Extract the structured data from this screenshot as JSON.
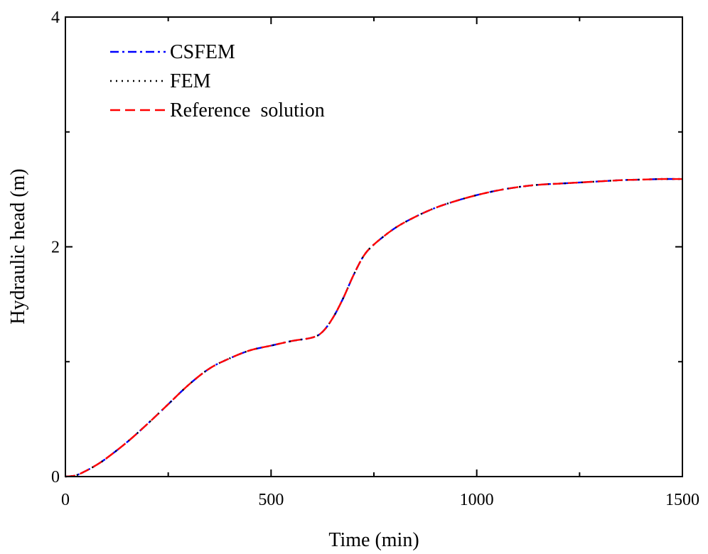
{
  "chart_data": {
    "type": "line",
    "xlabel": "Time (min)",
    "ylabel": "Hydraulic head (m)",
    "xlim": [
      0,
      1500
    ],
    "ylim": [
      0,
      4
    ],
    "x_major_ticks": [
      0,
      500,
      1000,
      1500
    ],
    "x_minor_ticks": [
      250,
      750,
      1250
    ],
    "y_major_ticks": [
      0,
      2,
      4
    ],
    "y_minor_ticks": [
      1,
      3
    ],
    "tick_direction": "inward",
    "grid": false,
    "legend_position": "top-left",
    "series": [
      {
        "name": "CSFEM",
        "color": "#0000ff",
        "line_style": "dash-dot",
        "x": [
          0,
          25,
          50,
          75,
          100,
          150,
          200,
          250,
          300,
          350,
          400,
          450,
          500,
          550,
          600,
          625,
          650,
          675,
          700,
          725,
          750,
          800,
          850,
          900,
          950,
          1000,
          1050,
          1100,
          1150,
          1200,
          1250,
          1300,
          1350,
          1400,
          1450,
          1500
        ],
        "y": [
          0,
          0.01,
          0.05,
          0.1,
          0.16,
          0.3,
          0.46,
          0.63,
          0.8,
          0.94,
          1.03,
          1.1,
          1.14,
          1.18,
          1.21,
          1.26,
          1.38,
          1.55,
          1.75,
          1.92,
          2.02,
          2.16,
          2.26,
          2.34,
          2.4,
          2.45,
          2.49,
          2.52,
          2.54,
          2.55,
          2.56,
          2.57,
          2.58,
          2.585,
          2.59,
          2.59
        ]
      },
      {
        "name": "FEM",
        "color": "#000000",
        "line_style": "dotted",
        "x": [
          0,
          25,
          50,
          75,
          100,
          150,
          200,
          250,
          300,
          350,
          400,
          450,
          500,
          550,
          600,
          625,
          650,
          675,
          700,
          725,
          750,
          800,
          850,
          900,
          950,
          1000,
          1050,
          1100,
          1150,
          1200,
          1250,
          1300,
          1350,
          1400,
          1450,
          1500
        ],
        "y": [
          0,
          0.01,
          0.05,
          0.1,
          0.16,
          0.3,
          0.46,
          0.63,
          0.8,
          0.94,
          1.03,
          1.1,
          1.14,
          1.18,
          1.21,
          1.26,
          1.38,
          1.55,
          1.75,
          1.92,
          2.02,
          2.16,
          2.26,
          2.34,
          2.4,
          2.45,
          2.49,
          2.52,
          2.54,
          2.55,
          2.56,
          2.57,
          2.58,
          2.585,
          2.59,
          2.59
        ]
      },
      {
        "name": "Reference  solution",
        "color": "#ff0000",
        "line_style": "dashed",
        "x": [
          0,
          25,
          50,
          75,
          100,
          150,
          200,
          250,
          300,
          350,
          400,
          450,
          500,
          550,
          600,
          625,
          650,
          675,
          700,
          725,
          750,
          800,
          850,
          900,
          950,
          1000,
          1050,
          1100,
          1150,
          1200,
          1250,
          1300,
          1350,
          1400,
          1450,
          1500
        ],
        "y": [
          0,
          0.01,
          0.05,
          0.1,
          0.16,
          0.3,
          0.46,
          0.63,
          0.8,
          0.94,
          1.03,
          1.1,
          1.14,
          1.18,
          1.21,
          1.26,
          1.38,
          1.55,
          1.75,
          1.92,
          2.02,
          2.16,
          2.26,
          2.34,
          2.4,
          2.45,
          2.49,
          2.52,
          2.54,
          2.55,
          2.56,
          2.57,
          2.58,
          2.585,
          2.59,
          2.59
        ]
      }
    ]
  }
}
